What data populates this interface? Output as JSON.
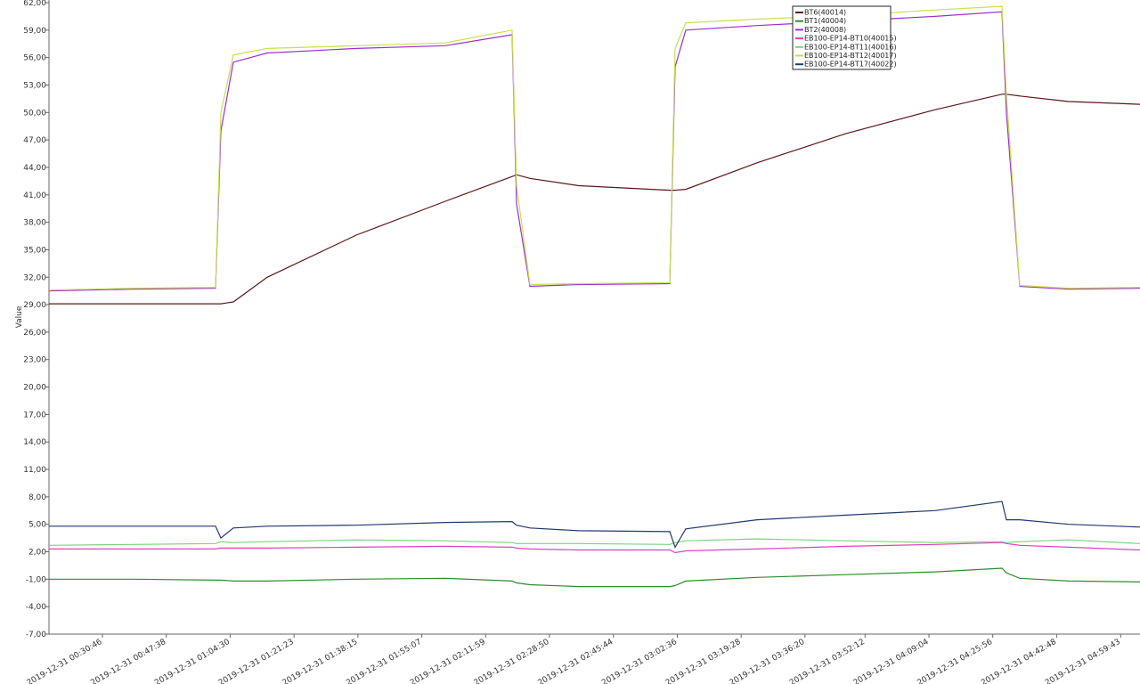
{
  "chart_data": {
    "type": "line",
    "y_label": "Value",
    "x": [
      "2019-12-31 00:16:39",
      "2019-12-31 00:39:00",
      "2019-12-31 01:00:38",
      "2019-12-31 01:02:03",
      "2019-12-31 01:05:21",
      "2019-12-31 01:14:17",
      "2019-12-31 01:37:48",
      "2019-12-31 02:01:20",
      "2019-12-31 02:18:58",
      "2019-12-31 02:20:09",
      "2019-12-31 02:23:41",
      "2019-12-31 02:36:37",
      "2019-12-31 03:00:36",
      "2019-12-31 03:02:01",
      "2019-12-31 03:04:51",
      "2019-12-31 03:23:40",
      "2019-12-31 03:47:11",
      "2019-12-31 04:10:42",
      "2019-12-31 04:28:21",
      "2019-12-31 04:29:32",
      "2019-12-31 04:33:03",
      "2019-12-31 04:46:00",
      "2019-12-31 05:04:49"
    ],
    "series": [
      {
        "name": "BT6(40014)",
        "color": "#5a1818",
        "values": [
          29.1,
          29.1,
          29.1,
          29.1,
          29.3,
          32,
          36.6,
          40.3,
          43,
          43.2,
          42.8,
          42,
          41.5,
          41.5,
          41.6,
          44.5,
          47.7,
          50.3,
          52,
          52,
          51.8,
          51.2,
          50.9
        ]
      },
      {
        "name": "BT1(40004)",
        "color": "#2e8b2e",
        "values": [
          -1.0,
          -1.0,
          -1.1,
          -1.1,
          -1.2,
          -1.2,
          -1.0,
          -0.9,
          -1.2,
          -1.4,
          -1.6,
          -1.8,
          -1.8,
          -1.7,
          -1.2,
          -0.8,
          -0.5,
          -0.2,
          0.2,
          -0.3,
          -0.9,
          -1.2,
          -1.3
        ]
      },
      {
        "name": "BT2(40008)",
        "color": "#9b30d0",
        "values": [
          30.5,
          30.7,
          30.8,
          48,
          55.5,
          56.5,
          57,
          57.3,
          58.5,
          40,
          31,
          31.2,
          31.3,
          55,
          59,
          59.5,
          60,
          60.5,
          61,
          50,
          31,
          30.7,
          30.8
        ]
      },
      {
        "name": "EB100-EP14-BT10(40015)",
        "color": "#e040c0",
        "values": [
          2.3,
          2.3,
          2.3,
          2.4,
          2.4,
          2.4,
          2.5,
          2.6,
          2.5,
          2.4,
          2.3,
          2.2,
          2.2,
          1.9,
          2.1,
          2.3,
          2.6,
          2.8,
          3.0,
          2.9,
          2.7,
          2.5,
          2.2
        ]
      },
      {
        "name": "EB100-EP14-BT11(40016)",
        "color": "#7fd17f",
        "values": [
          2.7,
          2.8,
          2.9,
          3.1,
          3.0,
          3.1,
          3.3,
          3.2,
          3.0,
          2.9,
          2.9,
          2.9,
          2.8,
          3.0,
          3.2,
          3.4,
          3.2,
          3.0,
          3.1,
          3.0,
          3.1,
          3.3,
          2.9
        ]
      },
      {
        "name": "EB100-EP14-BT12(40017)",
        "color": "#c8e050",
        "values": [
          30.6,
          30.8,
          30.9,
          50,
          56.3,
          57,
          57.3,
          57.6,
          59,
          42,
          31.2,
          31.3,
          31.4,
          57,
          59.8,
          60.2,
          60.6,
          61.2,
          61.6,
          52,
          31.1,
          30.8,
          30.9
        ]
      },
      {
        "name": "EB100-EP14-BT17(40022)",
        "color": "#1f3a6b",
        "values": [
          4.8,
          4.8,
          4.8,
          3.5,
          4.6,
          4.8,
          4.9,
          5.2,
          5.3,
          4.9,
          4.6,
          4.3,
          4.2,
          2.5,
          4.5,
          5.5,
          6,
          6.5,
          7.5,
          5.5,
          5.5,
          5.0,
          4.7
        ]
      }
    ],
    "xlim": [
      "2019-12-31 00:16:39",
      "2019-12-31 05:04:49"
    ],
    "xticks": [
      "2019-12-31 00:30:46",
      "2019-12-31 00:47:38",
      "2019-12-31 01:04:30",
      "2019-12-31 01:21:23",
      "2019-12-31 01:38:15",
      "2019-12-31 01:55:07",
      "2019-12-31 02:11:59",
      "2019-12-31 02:28:50",
      "2019-12-31 02:45:44",
      "2019-12-31 03:02:36",
      "2019-12-31 03:19:28",
      "2019-12-31 03:36:20",
      "2019-12-31 03:52:12",
      "2019-12-31 04:09:04",
      "2019-12-31 04:25:56",
      "2019-12-31 04:42:48",
      "2019-12-31 04:59:43"
    ],
    "ylim": [
      -7,
      62
    ],
    "yticks": [
      {
        "value": -7,
        "label": "-7,00"
      },
      {
        "value": -4,
        "label": "-4,00"
      },
      {
        "value": -1,
        "label": "-1,00"
      },
      {
        "value": 2,
        "label": "2,00"
      },
      {
        "value": 5,
        "label": "5,00"
      },
      {
        "value": 8,
        "label": "8,00"
      },
      {
        "value": 11,
        "label": "11,00"
      },
      {
        "value": 14,
        "label": "14,00"
      },
      {
        "value": 17,
        "label": "17,00"
      },
      {
        "value": 20,
        "label": "20,00"
      },
      {
        "value": 23,
        "label": "23,00"
      },
      {
        "value": 26,
        "label": "26,00"
      },
      {
        "value": 29,
        "label": "29,00"
      },
      {
        "value": 32,
        "label": "32,00"
      },
      {
        "value": 35,
        "label": "35,00"
      },
      {
        "value": 38,
        "label": "38,00"
      },
      {
        "value": 41,
        "label": "41,00"
      },
      {
        "value": 44,
        "label": "44,00"
      },
      {
        "value": 47,
        "label": "47,00"
      },
      {
        "value": 50,
        "label": "50,00"
      },
      {
        "value": 53,
        "label": "53,00"
      },
      {
        "value": 56,
        "label": "56,00"
      },
      {
        "value": 59,
        "label": "59,00"
      },
      {
        "value": 62,
        "label": "62,00"
      }
    ]
  }
}
